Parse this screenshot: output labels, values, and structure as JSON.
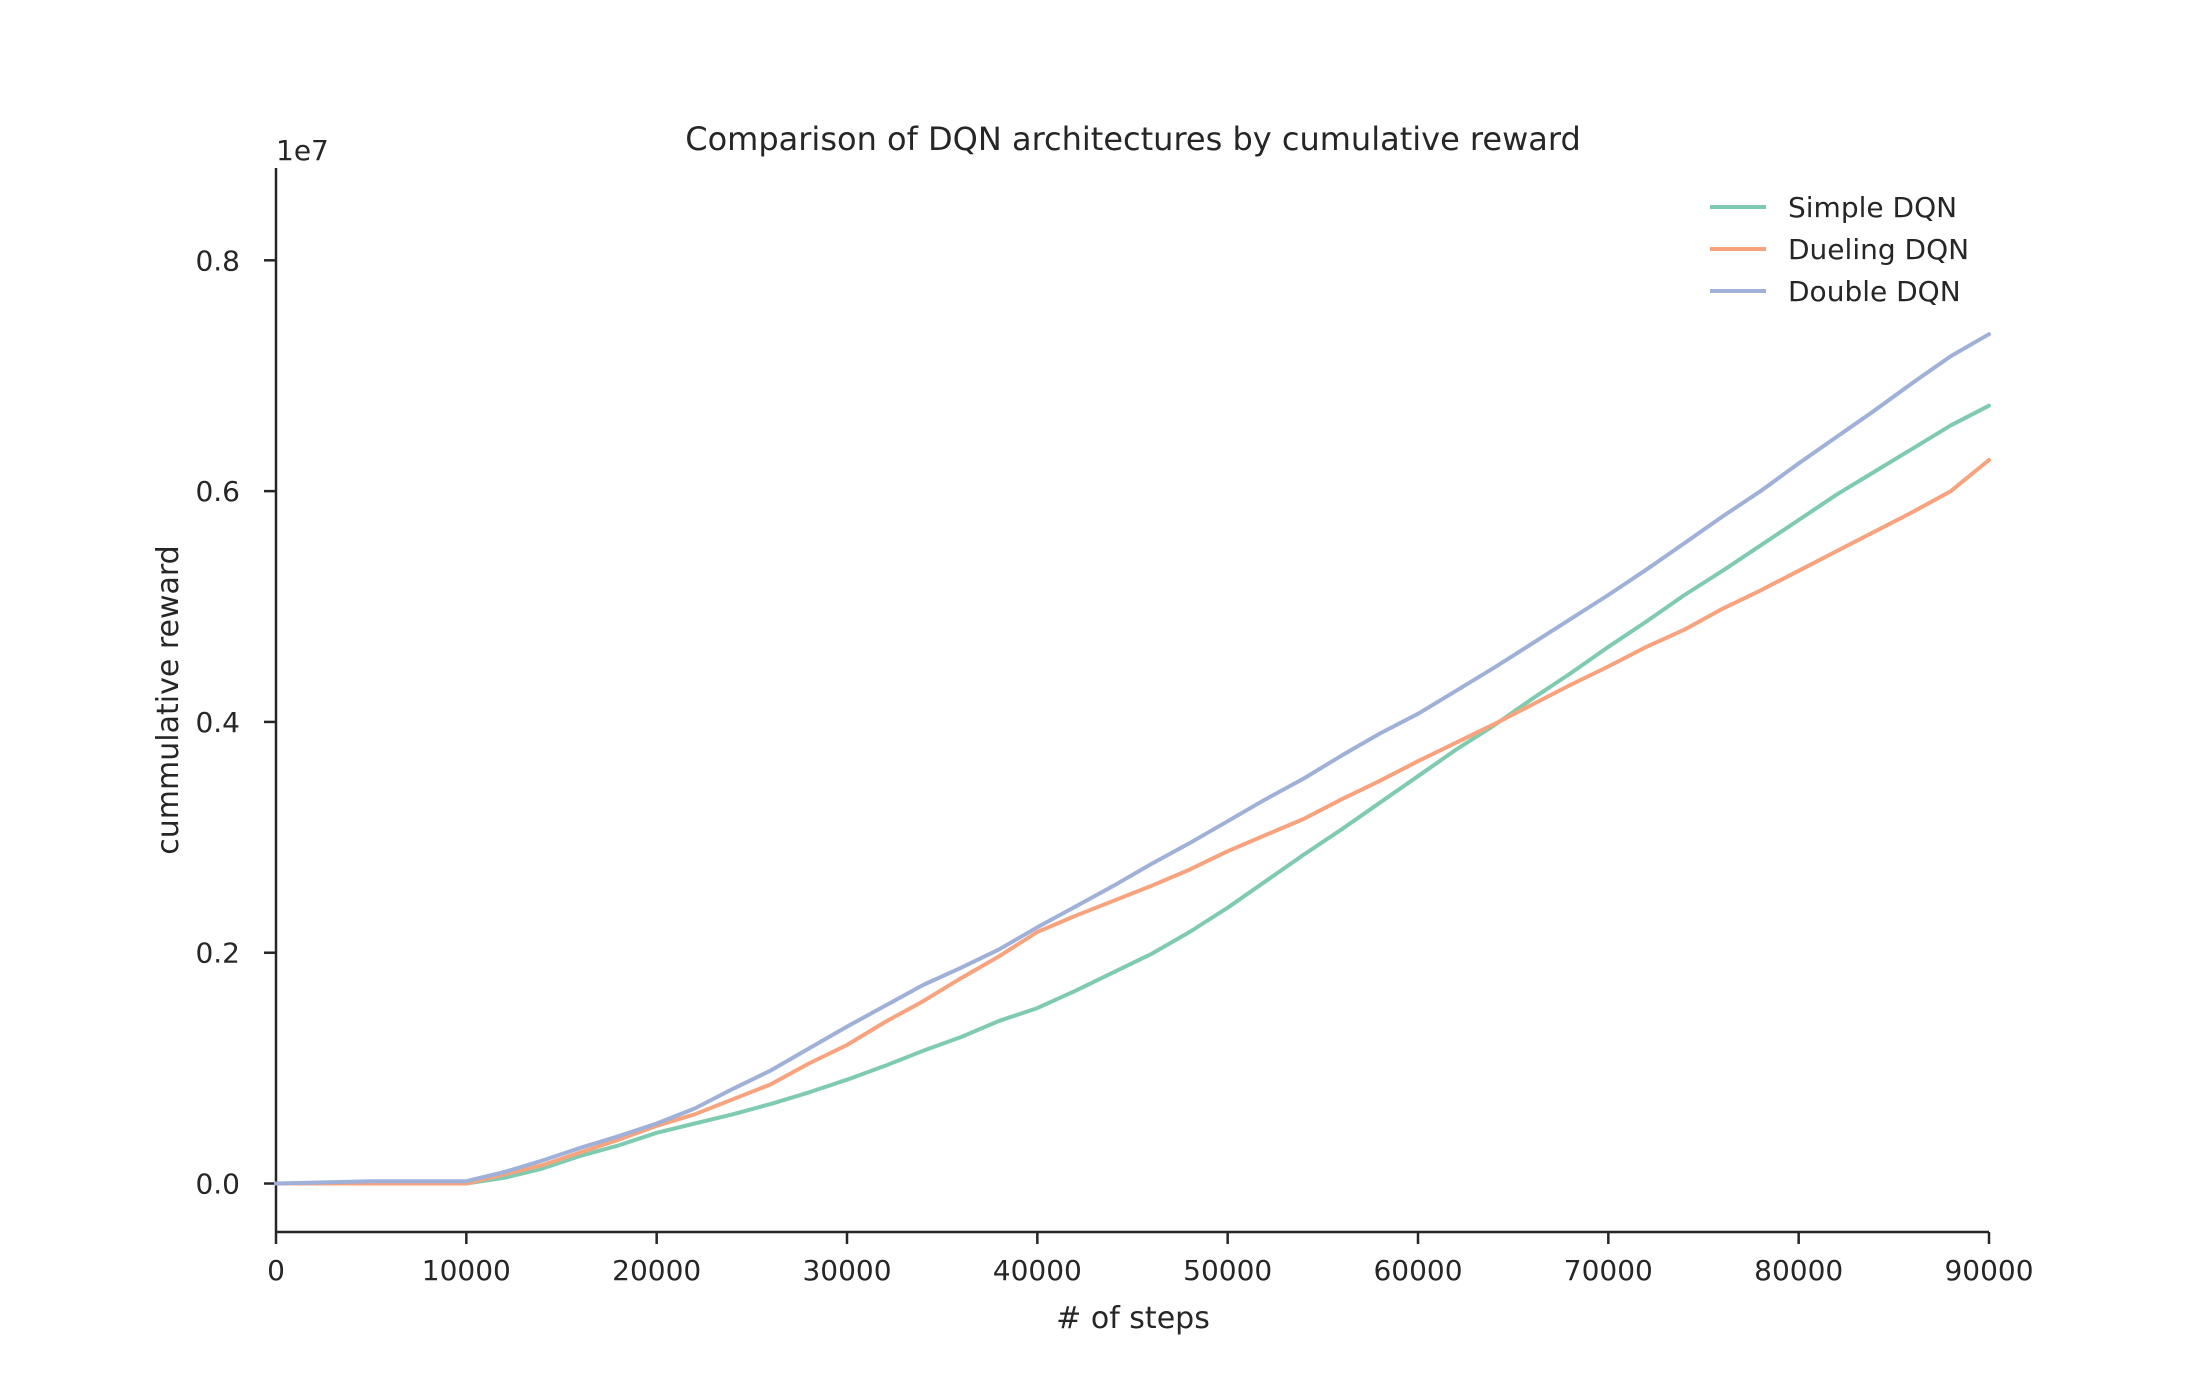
{
  "chart_data": {
    "type": "line",
    "title": "Comparison of DQN architectures by cumulative reward",
    "xlabel": "# of steps",
    "ylabel": "cummulative reward",
    "y_offset_label": "1e7",
    "xlim": [
      0,
      90000
    ],
    "ylim": [
      -0.042,
      0.88
    ],
    "xticks": [
      0,
      10000,
      20000,
      30000,
      40000,
      50000,
      60000,
      70000,
      80000,
      90000
    ],
    "xtick_labels": [
      "0",
      "10000",
      "20000",
      "30000",
      "40000",
      "50000",
      "60000",
      "70000",
      "80000",
      "90000"
    ],
    "yticks": [
      0.0,
      0.2,
      0.4,
      0.6,
      0.8
    ],
    "ytick_labels": [
      "0.0",
      "0.2",
      "0.4",
      "0.6",
      "0.8"
    ],
    "grid": false,
    "legend_position": "top-right",
    "x": [
      0,
      5000,
      10000,
      12000,
      14000,
      16000,
      18000,
      20000,
      22000,
      24000,
      26000,
      28000,
      30000,
      32000,
      34000,
      36000,
      38000,
      40000,
      42000,
      44000,
      46000,
      48000,
      50000,
      52000,
      54000,
      56000,
      58000,
      60000,
      62000,
      64000,
      66000,
      68000,
      70000,
      72000,
      74000,
      76000,
      78000,
      80000,
      82000,
      84000,
      86000,
      88000,
      90000
    ],
    "series": [
      {
        "name": "Simple DQN",
        "color": "#7fcbb0",
        "values": [
          0.0,
          0.0,
          0.0,
          0.005,
          0.013,
          0.024,
          0.033,
          0.044,
          0.052,
          0.06,
          0.069,
          0.079,
          0.09,
          0.102,
          0.115,
          0.127,
          0.141,
          0.152,
          0.167,
          0.183,
          0.199,
          0.218,
          0.239,
          0.262,
          0.285,
          0.307,
          0.33,
          0.353,
          0.376,
          0.397,
          0.42,
          0.442,
          0.465,
          0.487,
          0.51,
          0.531,
          0.553,
          0.575,
          0.597,
          0.617,
          0.637,
          0.657,
          0.674
        ]
      },
      {
        "name": "Dueling DQN",
        "color": "#f7a37e",
        "values": [
          0.0,
          0.0,
          0.0,
          0.008,
          0.016,
          0.027,
          0.038,
          0.05,
          0.06,
          0.073,
          0.086,
          0.104,
          0.12,
          0.14,
          0.158,
          0.178,
          0.197,
          0.218,
          0.232,
          0.245,
          0.258,
          0.272,
          0.288,
          0.302,
          0.316,
          0.333,
          0.349,
          0.366,
          0.382,
          0.398,
          0.415,
          0.432,
          0.448,
          0.465,
          0.48,
          0.498,
          0.514,
          0.531,
          0.548,
          0.565,
          0.582,
          0.6,
          0.627
        ]
      },
      {
        "name": "Double DQN",
        "color": "#9fb0d9",
        "values": [
          0.0,
          0.002,
          0.002,
          0.01,
          0.02,
          0.031,
          0.041,
          0.052,
          0.065,
          0.082,
          0.098,
          0.117,
          0.136,
          0.154,
          0.172,
          0.187,
          0.203,
          0.222,
          0.24,
          0.258,
          0.277,
          0.295,
          0.314,
          0.333,
          0.351,
          0.371,
          0.39,
          0.407,
          0.427,
          0.447,
          0.468,
          0.489,
          0.51,
          0.532,
          0.555,
          0.578,
          0.6,
          0.624,
          0.647,
          0.67,
          0.694,
          0.717,
          0.736
        ]
      }
    ]
  }
}
